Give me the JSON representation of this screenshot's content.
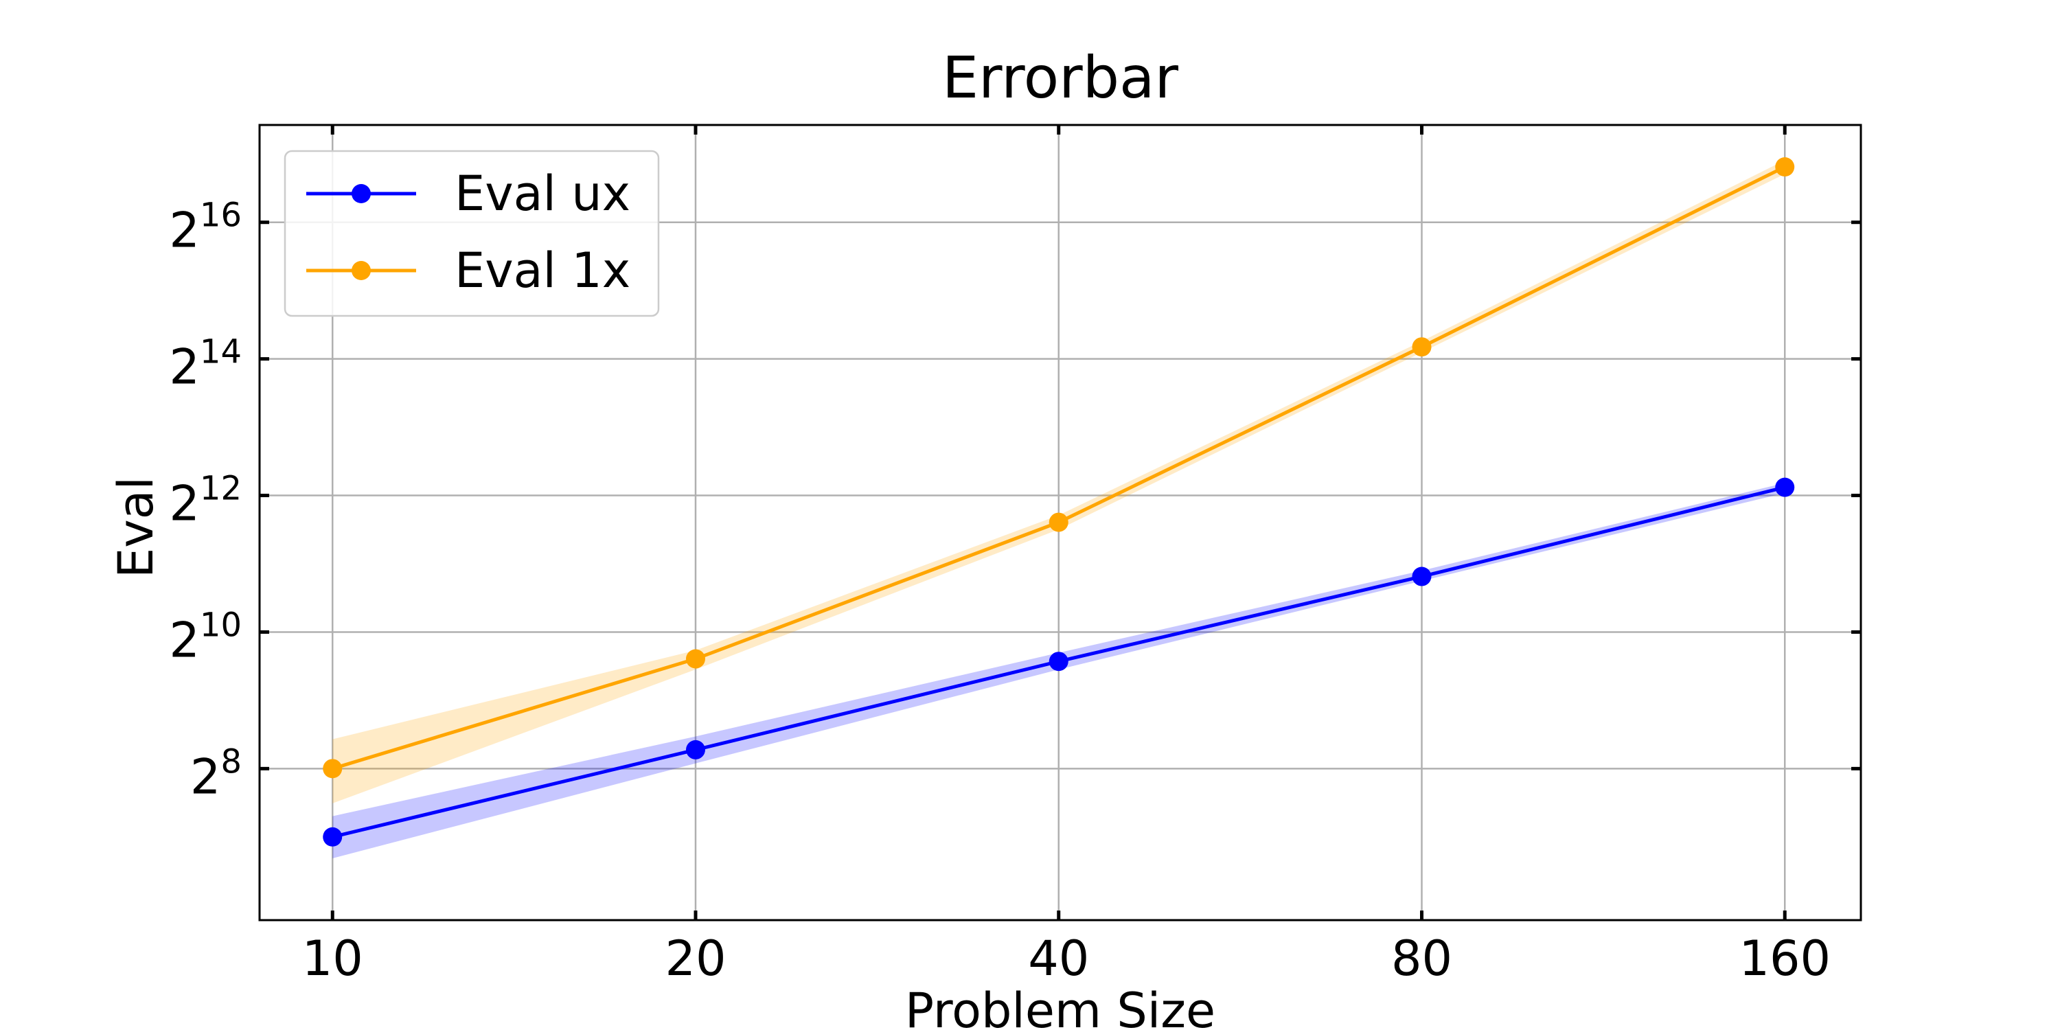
{
  "chart_data": {
    "type": "line",
    "title": "Errorbar",
    "xlabel": "Problem Size",
    "ylabel": "Eval",
    "x_scale": "log2",
    "y_scale": "log2",
    "x": [
      10,
      20,
      40,
      80,
      160
    ],
    "x_tick_labels": [
      "10",
      "20",
      "40",
      "80",
      "160"
    ],
    "xlim": [
      8.7,
      185
    ],
    "y_ticks": [
      {
        "base": "2",
        "exp": "8",
        "value": 256
      },
      {
        "base": "2",
        "exp": "10",
        "value": 1024
      },
      {
        "base": "2",
        "exp": "12",
        "value": 4096
      },
      {
        "base": "2",
        "exp": "14",
        "value": 16384
      },
      {
        "base": "2",
        "exp": "16",
        "value": 65536
      }
    ],
    "ylim": [
      55,
      176000
    ],
    "grid": true,
    "legend_position": "upper-left",
    "series": [
      {
        "name": "Eval ux",
        "color": "#0000ff",
        "band_color": "#0000ff",
        "marker": "circle",
        "values": [
          128,
          310,
          760,
          1800,
          4450
        ],
        "lower": [
          103,
          270,
          700,
          1720,
          4200
        ],
        "upper": [
          158,
          355,
          830,
          1910,
          4650
        ]
      },
      {
        "name": "Eval 1x",
        "color": "#ffa500",
        "band_color": "#ffa500",
        "marker": "circle",
        "values": [
          256,
          780,
          3120,
          18500,
          115000
        ],
        "lower": [
          180,
          700,
          2900,
          17500,
          107000
        ],
        "upper": [
          345,
          850,
          3350,
          19600,
          123000
        ]
      }
    ]
  }
}
